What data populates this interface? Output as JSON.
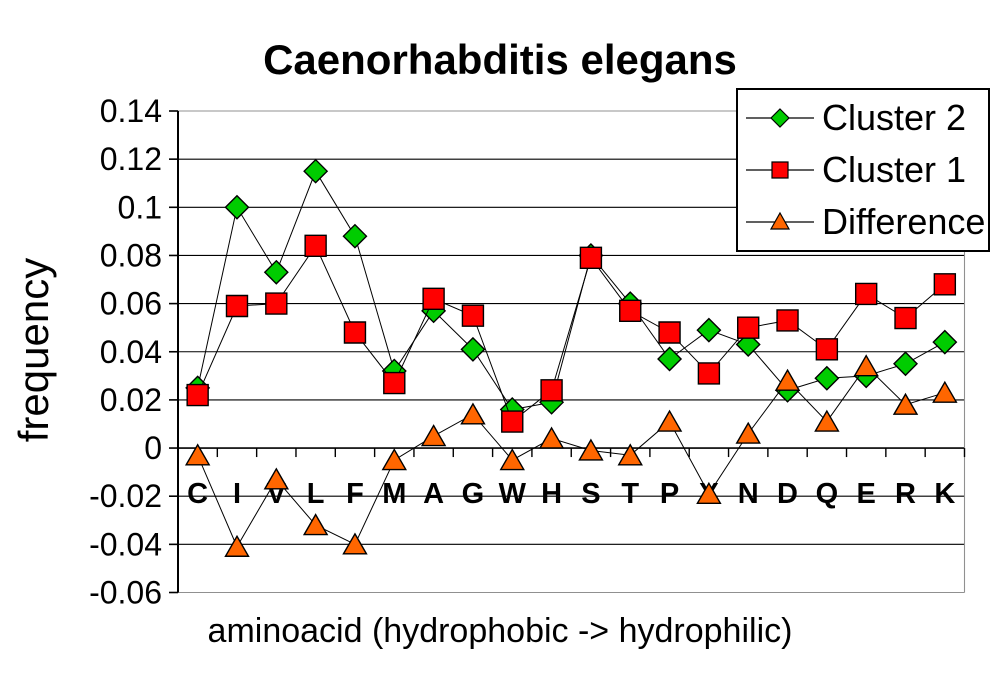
{
  "chart_data": {
    "type": "line",
    "title": "Caenorhabditis elegans",
    "xlabel": "aminoacid (hydrophobic -> hydrophilic)",
    "ylabel": "frequency",
    "categories": [
      "C",
      "I",
      "V",
      "L",
      "F",
      "M",
      "A",
      "G",
      "W",
      "H",
      "S",
      "T",
      "P",
      "Y",
      "N",
      "D",
      "Q",
      "E",
      "R",
      "K"
    ],
    "ylim": [
      -0.06,
      0.14
    ],
    "ytick_step": 0.02,
    "ytick_labels": [
      "0.14",
      "0.12",
      "0.1",
      "0.08",
      "0.06",
      "0.04",
      "0.02",
      "0",
      "-0.02",
      "-0.04",
      "-0.06"
    ],
    "grid": true,
    "legend_position": "top-right",
    "series": [
      {
        "name": "Cluster 2",
        "marker": "diamond",
        "color": "#00CC00",
        "values": [
          0.025,
          0.1,
          0.073,
          0.115,
          0.088,
          0.032,
          0.057,
          0.041,
          0.016,
          0.019,
          0.08,
          0.06,
          0.037,
          0.049,
          0.043,
          0.024,
          0.029,
          0.03,
          0.035,
          0.044
        ]
      },
      {
        "name": "Cluster 1",
        "marker": "square",
        "color": "#FF0000",
        "values": [
          0.022,
          0.059,
          0.06,
          0.084,
          0.048,
          0.027,
          0.062,
          0.055,
          0.011,
          0.024,
          0.079,
          0.057,
          0.048,
          0.031,
          0.05,
          0.053,
          0.041,
          0.064,
          0.054,
          0.068
        ]
      },
      {
        "name": "Difference",
        "marker": "triangle",
        "color": "#FF6600",
        "values": [
          -0.003,
          -0.041,
          -0.013,
          -0.032,
          -0.04,
          -0.005,
          0.005,
          0.014,
          -0.005,
          0.004,
          -0.001,
          -0.003,
          0.011,
          -0.019,
          0.006,
          0.028,
          0.011,
          0.034,
          0.018,
          0.023
        ]
      }
    ],
    "line_color": "#000000",
    "grid_color": "#000000",
    "border_color": "#909090"
  }
}
